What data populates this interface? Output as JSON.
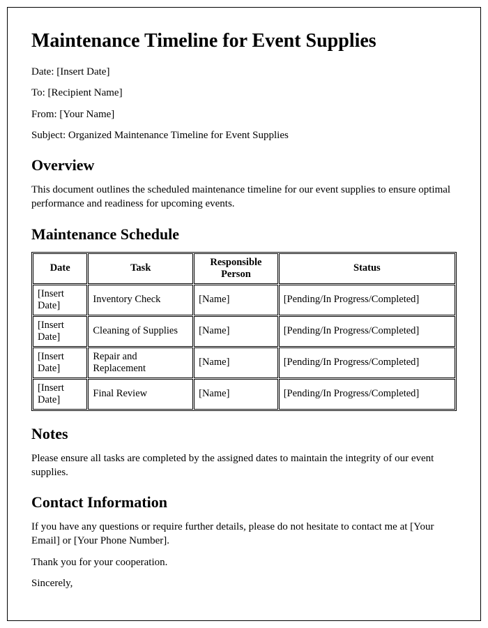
{
  "title": "Maintenance Timeline for Event Supplies",
  "header": {
    "date_label": "Date: [Insert Date]",
    "to_label": "To: [Recipient Name]",
    "from_label": "From: [Your Name]",
    "subject_label": "Subject: Organized Maintenance Timeline for Event Supplies"
  },
  "overview": {
    "heading": "Overview",
    "text": "This document outlines the scheduled maintenance timeline for our event supplies to ensure optimal performance and readiness for upcoming events."
  },
  "schedule": {
    "heading": "Maintenance Schedule",
    "columns": [
      "Date",
      "Task",
      "Responsible Person",
      "Status"
    ],
    "rows": [
      [
        "[Insert Date]",
        "Inventory Check",
        "[Name]",
        "[Pending/In Progress/Completed]"
      ],
      [
        "[Insert Date]",
        "Cleaning of Supplies",
        "[Name]",
        "[Pending/In Progress/Completed]"
      ],
      [
        "[Insert Date]",
        "Repair and Replacement",
        "[Name]",
        "[Pending/In Progress/Completed]"
      ],
      [
        "[Insert Date]",
        "Final Review",
        "[Name]",
        "[Pending/In Progress/Completed]"
      ]
    ]
  },
  "notes": {
    "heading": "Notes",
    "text": "Please ensure all tasks are completed by the assigned dates to maintain the integrity of our event supplies."
  },
  "contact": {
    "heading": "Contact Information",
    "text": "If you have any questions or require further details, please do not hesitate to contact me at [Your Email] or [Your Phone Number].",
    "thanks": "Thank you for your cooperation.",
    "signoff": "Sincerely,"
  }
}
